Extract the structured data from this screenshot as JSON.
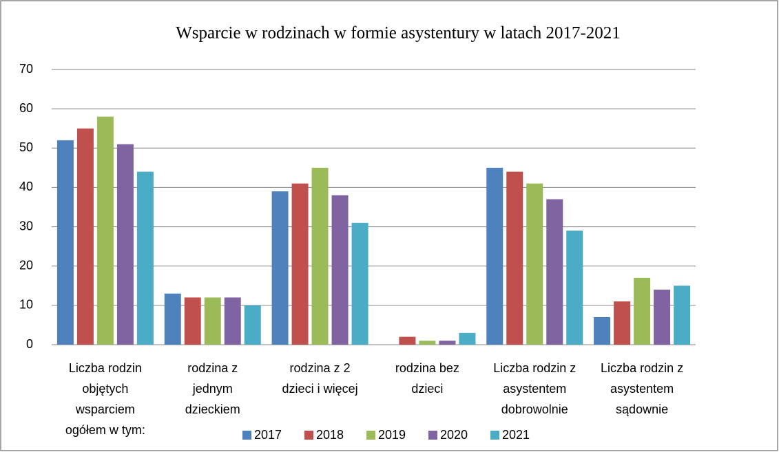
{
  "chart_data": {
    "type": "bar",
    "title": "Wsparcie w rodzinach w formie asystentury  w latach 2017-2021",
    "categories": [
      [
        "Liczba rodzin",
        "objętych",
        "wsparciem",
        "ogółem w tym:"
      ],
      [
        "rodzina z",
        "jednym",
        "dzieckiem"
      ],
      [
        "rodzina z 2",
        "dzieci i więcej"
      ],
      [
        "rodzina bez",
        "dzieci"
      ],
      [
        "Liczba rodzin z",
        "asystentem",
        "dobrowolnie"
      ],
      [
        "Liczba rodzin z",
        "asystentem",
        "sądownie"
      ]
    ],
    "series": [
      {
        "name": "2017",
        "color": "#4f81bd",
        "values": [
          52,
          13,
          39,
          0,
          45,
          7
        ]
      },
      {
        "name": "2018",
        "color": "#c0504d",
        "values": [
          55,
          12,
          41,
          2,
          44,
          11
        ]
      },
      {
        "name": "2019",
        "color": "#9bbb59",
        "values": [
          58,
          12,
          45,
          1,
          41,
          17
        ]
      },
      {
        "name": "2020",
        "color": "#8064a2",
        "values": [
          51,
          12,
          38,
          1,
          37,
          14
        ]
      },
      {
        "name": "2021",
        "color": "#4bacc6",
        "values": [
          44,
          10,
          31,
          3,
          29,
          15
        ]
      }
    ],
    "ylim": [
      0,
      70
    ],
    "yticks": [
      0,
      10,
      20,
      30,
      40,
      50,
      60,
      70
    ],
    "grid": true,
    "legend": "bottom"
  }
}
